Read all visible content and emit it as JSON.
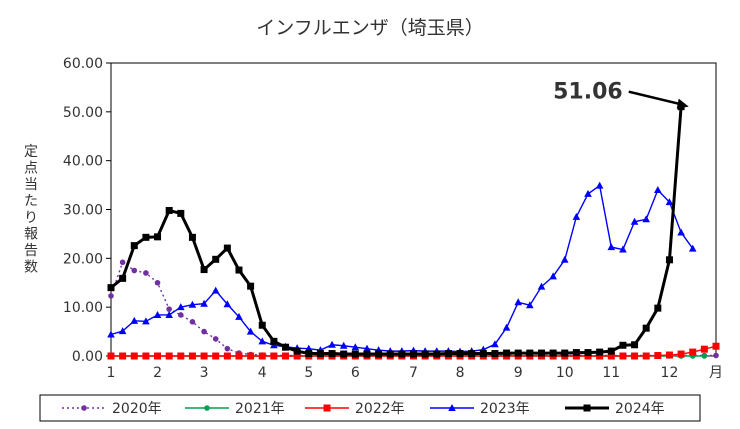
{
  "chart_data": {
    "type": "line",
    "title": "インフルエンザ（埼玉県）",
    "ylabel": "定点当たり報告数",
    "xlabel": "",
    "x_unit": "月",
    "x_tick_labels": [
      "1",
      "2",
      "3",
      "4",
      "5",
      "6",
      "7",
      "8",
      "9",
      "10",
      "11",
      "12"
    ],
    "y_tick_labels": [
      "0.00",
      "10.00",
      "20.00",
      "30.00",
      "40.00",
      "50.00",
      "60.00"
    ],
    "ylim": [
      0,
      60
    ],
    "xlim": [
      1,
      53
    ],
    "grid": false,
    "legend": "bottom",
    "annotation": {
      "text": "51.06",
      "week": 51,
      "value": 51.06
    },
    "series": [
      {
        "name": "2020年",
        "color": "#7030a0",
        "dash": true,
        "marker": "circle",
        "values": [
          12.3,
          19.2,
          17.5,
          17.0,
          15.0,
          9.6,
          8.4,
          7.0,
          5.0,
          3.5,
          1.5,
          0.6,
          0.3,
          0.2,
          0.1,
          0.1,
          0.1,
          0.1,
          0.1,
          0.1,
          0.1,
          0.1,
          0.1,
          0.1,
          0.1,
          0.1,
          0.1,
          0.1,
          0.1,
          0.1,
          0.1,
          0.1,
          0.1,
          0.1,
          0.1,
          0.1,
          0.1,
          0.1,
          0.1,
          0.1,
          0.1,
          0.1,
          0.1,
          0.1,
          0.1,
          0.1,
          0.1,
          0.1,
          0.1,
          0.1,
          0.1,
          0.1,
          0.1
        ]
      },
      {
        "name": "2021年",
        "color": "#00a050",
        "dash": false,
        "marker": "circle",
        "values": [
          0,
          0,
          0,
          0,
          0,
          0,
          0,
          0,
          0,
          0,
          0,
          0,
          0,
          0,
          0,
          0,
          0,
          0,
          0,
          0,
          0,
          0,
          0,
          0,
          0,
          0,
          0,
          0,
          0,
          0,
          0,
          0,
          0,
          0,
          0,
          0,
          0,
          0,
          0,
          0,
          0,
          0,
          0,
          0,
          0,
          0,
          0,
          0,
          0,
          0,
          0,
          0
        ]
      },
      {
        "name": "2022年",
        "color": "#ff0000",
        "dash": false,
        "marker": "square",
        "values": [
          0,
          0,
          0,
          0,
          0,
          0,
          0,
          0,
          0,
          0,
          0,
          0,
          0,
          0,
          0,
          0,
          0,
          0,
          0,
          0,
          0,
          0,
          0,
          0,
          0,
          0,
          0,
          0,
          0,
          0,
          0,
          0,
          0,
          0,
          0,
          0,
          0,
          0,
          0,
          0,
          0,
          0,
          0,
          0,
          0,
          0,
          0,
          0.1,
          0.2,
          0.4,
          0.8,
          1.4,
          2.0
        ]
      },
      {
        "name": "2023年",
        "color": "#0000ff",
        "dash": false,
        "marker": "triangle",
        "values": [
          4.4,
          5.1,
          7.2,
          7.1,
          8.4,
          8.4,
          10.0,
          10.5,
          10.7,
          13.4,
          10.6,
          8.0,
          5.0,
          3.0,
          2.2,
          1.9,
          1.6,
          1.5,
          1.2,
          2.3,
          2.1,
          1.8,
          1.5,
          1.2,
          1.0,
          1.0,
          1.1,
          1.0,
          1.0,
          1.0,
          0.9,
          1.0,
          1.3,
          2.4,
          5.8,
          11.0,
          10.4,
          14.2,
          16.3,
          19.7,
          28.5,
          33.2,
          34.9,
          22.3,
          21.8,
          27.5,
          28.0,
          34.0,
          31.5,
          25.3,
          22.0
        ]
      },
      {
        "name": "2024年",
        "color": "#000000",
        "dash": false,
        "marker": "square",
        "values": [
          14.0,
          15.9,
          22.6,
          24.3,
          24.4,
          29.8,
          29.2,
          24.3,
          17.7,
          19.8,
          22.1,
          17.6,
          14.3,
          6.3,
          3.0,
          1.8,
          1.0,
          0.5,
          0.5,
          0.5,
          0.4,
          0.4,
          0.4,
          0.4,
          0.4,
          0.4,
          0.4,
          0.4,
          0.4,
          0.5,
          0.5,
          0.5,
          0.5,
          0.5,
          0.6,
          0.6,
          0.6,
          0.6,
          0.6,
          0.6,
          0.7,
          0.7,
          0.8,
          1.0,
          2.2,
          2.3,
          5.7,
          9.8,
          19.7,
          51.06
        ]
      }
    ]
  }
}
